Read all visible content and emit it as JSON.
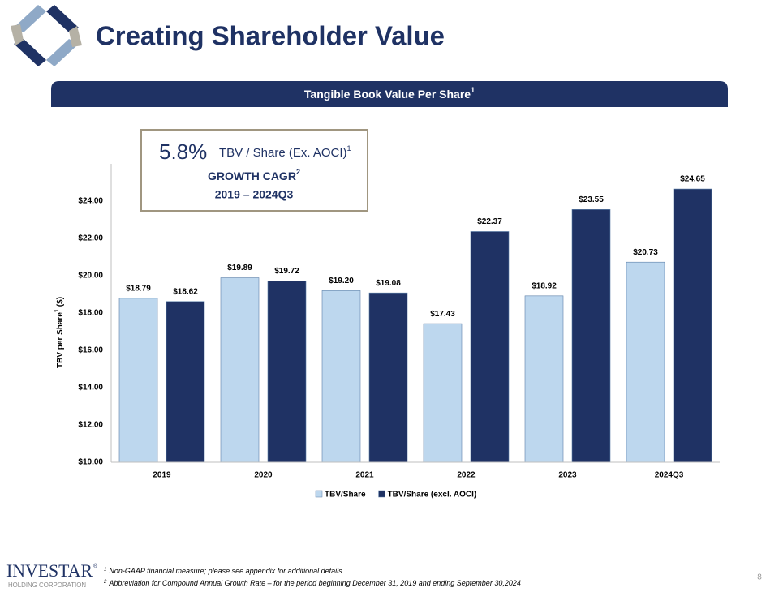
{
  "page_title": "Creating Shareholder Value",
  "chart_data": {
    "type": "bar",
    "title": "Tangible Book Value Per Share",
    "title_sup": "1",
    "ylabel": "TBV per Share",
    "ylabel_sup": "1",
    "ylabel_unit": "($)",
    "categories": [
      "2019",
      "2020",
      "2021",
      "2022",
      "2023",
      "2024Q3"
    ],
    "series": [
      {
        "name": "TBV/Share",
        "color": "#bdd7ee",
        "values": [
          18.79,
          19.89,
          19.2,
          17.43,
          18.92,
          20.73
        ],
        "value_labels": [
          "$18.79",
          "$19.89",
          "$19.20",
          "$17.43",
          "$18.92",
          "$20.73"
        ]
      },
      {
        "name": "TBV/Share (excl. AOCI)",
        "color": "#1f3264",
        "values": [
          18.62,
          19.72,
          19.08,
          22.37,
          23.55,
          24.65
        ],
        "value_labels": [
          "$18.62",
          "$19.72",
          "$19.08",
          "$22.37",
          "$23.55",
          "$24.65"
        ]
      }
    ],
    "ylim": [
      10,
      26
    ],
    "yticks": [
      {
        "value": 10,
        "label": "$10.00"
      },
      {
        "value": 12,
        "label": "$12.00"
      },
      {
        "value": 14,
        "label": "$14.00"
      },
      {
        "value": 16,
        "label": "$16.00"
      },
      {
        "value": 18,
        "label": "$18.00"
      },
      {
        "value": 20,
        "label": "$20.00"
      },
      {
        "value": 22,
        "label": "$22.00"
      },
      {
        "value": 24,
        "label": "$24.00"
      }
    ],
    "grid": false,
    "legend": "bottom"
  },
  "callout": {
    "value": "5.8%",
    "metric": "TBV / Share (Ex. AOCI)",
    "metric_sup": "1",
    "label": "GROWTH CAGR",
    "label_sup": "2",
    "period": "2019 – 2024Q3"
  },
  "footnotes": [
    {
      "number": "1",
      "text": "Non-GAAP financial measure; please see appendix for additional details"
    },
    {
      "number": "2",
      "text": "Abbreviation for Compound Annual Growth Rate – for the period beginning December 31, 2019 and ending September 30,2024"
    }
  ],
  "logo": {
    "name": "INVESTAR",
    "mark": "®",
    "subtitle": "HOLDING CORPORATION"
  },
  "page_number": "8"
}
